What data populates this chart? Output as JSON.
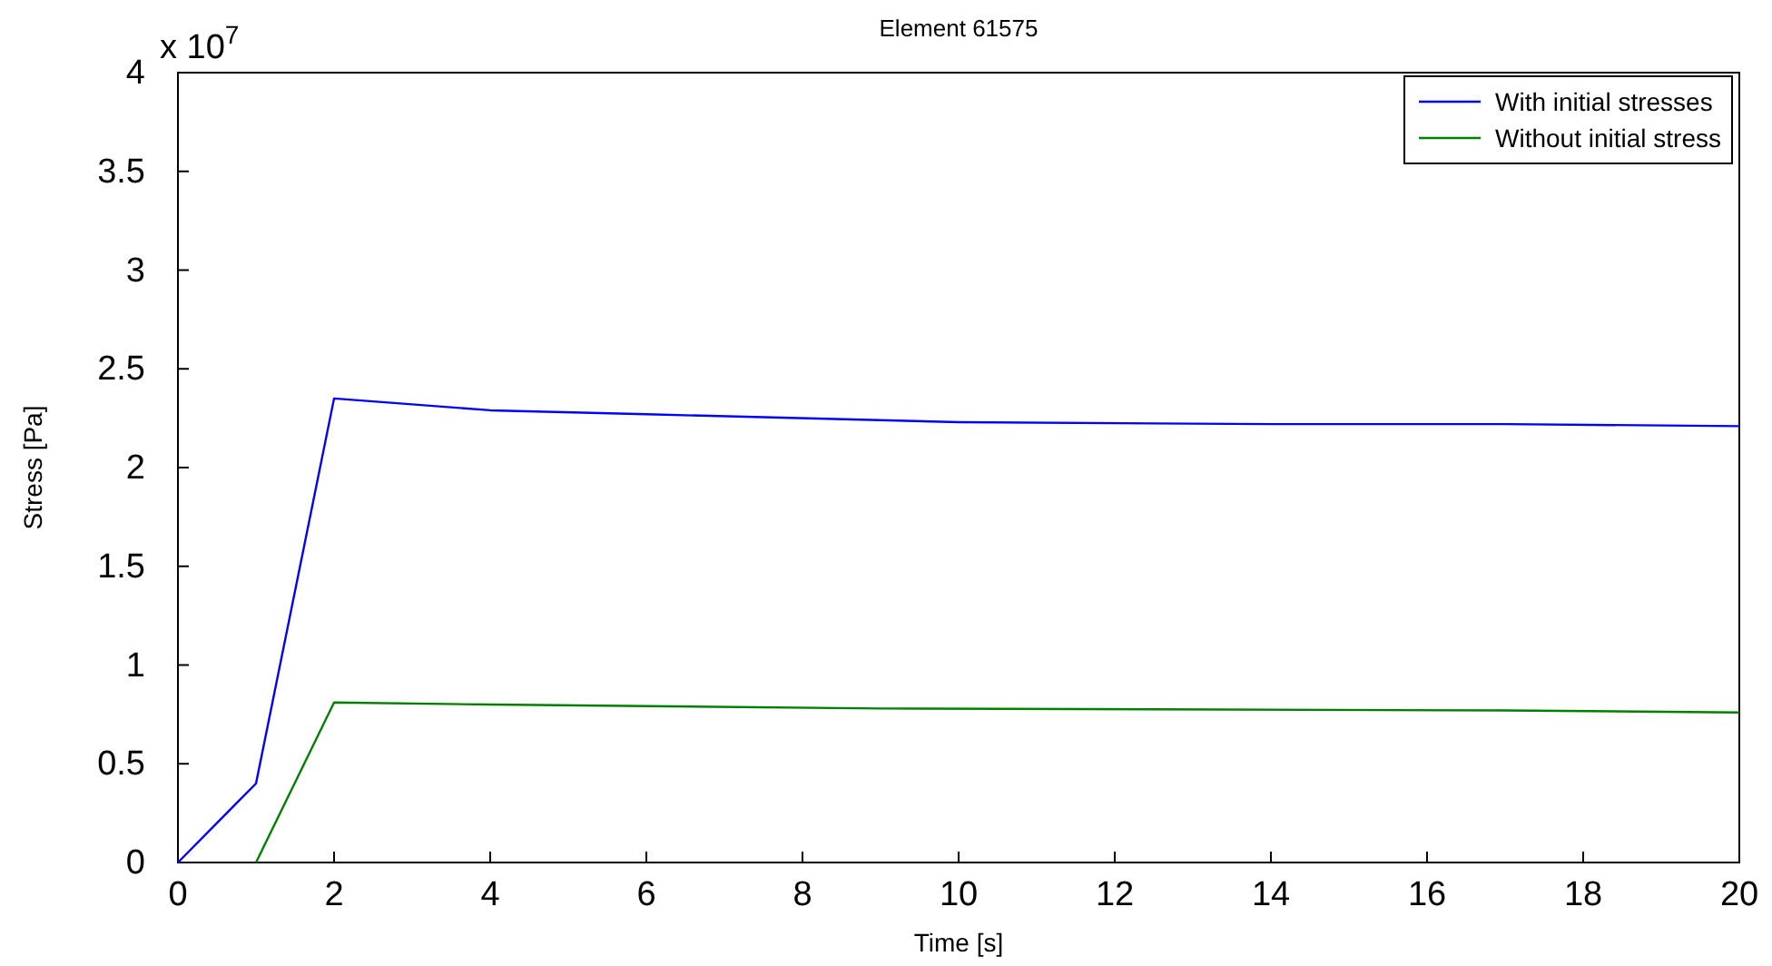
{
  "chart_data": {
    "type": "line",
    "title": "Element 61575",
    "xlabel": "Time [s]",
    "ylabel": "Stress [Pa]",
    "annotations": [
      "x 10$^{7}$"
    ],
    "xlim": [
      0,
      20
    ],
    "xticks": [
      0,
      2,
      4,
      6,
      8,
      10,
      12,
      14,
      16,
      18,
      20
    ],
    "ylim": [
      0,
      4
    ],
    "yticks": [
      0,
      0.5,
      1,
      1.5,
      2,
      2.5,
      3,
      3.5,
      4
    ],
    "grid": false,
    "legend": "top right",
    "marker": "none",
    "line_style": "solid",
    "series": [
      {
        "name": "With initial stresses",
        "color": "#0000ff",
        "x": [
          0,
          1,
          2,
          4,
          6,
          10,
          14,
          17,
          20
        ],
        "values": [
          0,
          0.4,
          2.35,
          2.29,
          2.27,
          2.23,
          2.22,
          2.22,
          2.21
        ]
      },
      {
        "name": "Without initial stress",
        "color": "#008000",
        "x": [
          1,
          2,
          4,
          9,
          17,
          20
        ],
        "values": [
          0,
          0.81,
          0.8,
          0.78,
          0.77,
          0.76
        ]
      }
    ]
  }
}
